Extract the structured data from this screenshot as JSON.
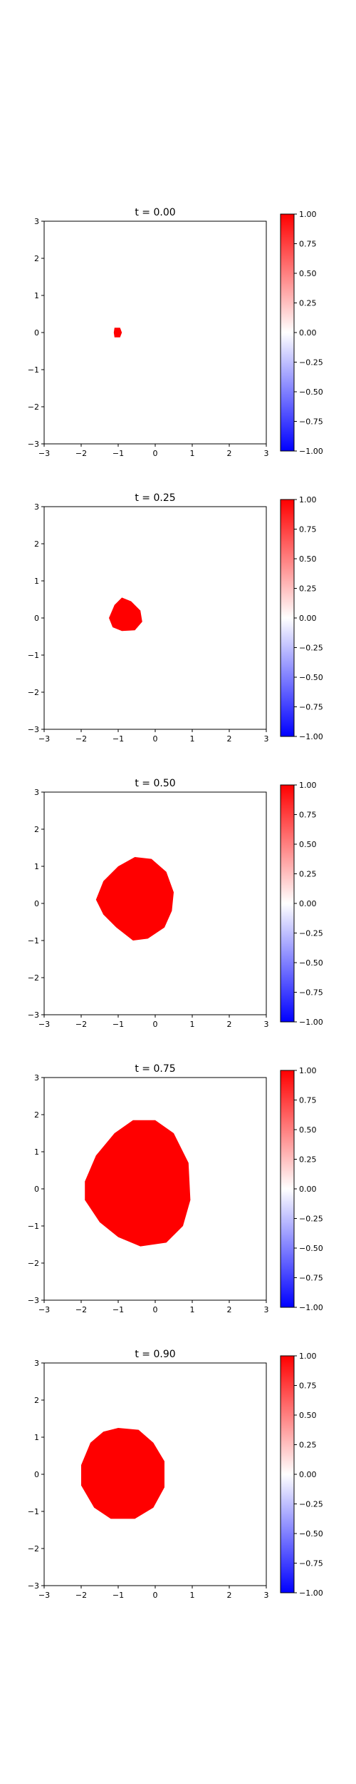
{
  "figure": {
    "background": "#ffffff",
    "mark_color": "#ff0000",
    "axis_color": "#000000"
  },
  "colorbar": {
    "colormap": "bwr",
    "colors": [
      "#0000ff",
      "#ffffff",
      "#ff0000"
    ],
    "range": [
      -1.0,
      1.0
    ],
    "tick_labels": [
      "1.00",
      "0.75",
      "0.50",
      "0.25",
      "0.00",
      "−0.25",
      "−0.50",
      "−0.75",
      "−1.00"
    ]
  },
  "chart_data": [
    {
      "type": "heatmap",
      "title": "t = 0.00",
      "xlim": [
        -3,
        3
      ],
      "ylim": [
        -3,
        3
      ],
      "x_ticks": [
        "−3",
        "−2",
        "−1",
        "0",
        "1",
        "2",
        "3"
      ],
      "y_ticks": [
        "3",
        "2",
        "1",
        "0",
        "−1",
        "−2",
        "−3"
      ],
      "value_inside": 1.0,
      "value_outside": 0.0,
      "region_boundary": [
        [
          -1.1,
          0.13
        ],
        [
          -0.95,
          0.13
        ],
        [
          -0.9,
          0.0
        ],
        [
          -0.95,
          -0.13
        ],
        [
          -1.1,
          -0.13
        ],
        [
          -1.12,
          0.0
        ]
      ]
    },
    {
      "type": "heatmap",
      "title": "t = 0.25",
      "xlim": [
        -3,
        3
      ],
      "ylim": [
        -3,
        3
      ],
      "x_ticks": [
        "−3",
        "−2",
        "−1",
        "0",
        "1",
        "2",
        "3"
      ],
      "y_ticks": [
        "3",
        "2",
        "1",
        "0",
        "−1",
        "−2",
        "−3"
      ],
      "value_inside": 1.0,
      "value_outside": 0.0,
      "region_boundary": [
        [
          -0.9,
          0.55
        ],
        [
          -0.65,
          0.45
        ],
        [
          -0.4,
          0.2
        ],
        [
          -0.35,
          -0.1
        ],
        [
          -0.55,
          -0.33
        ],
        [
          -0.9,
          -0.35
        ],
        [
          -1.15,
          -0.25
        ],
        [
          -1.25,
          0.0
        ],
        [
          -1.1,
          0.35
        ]
      ]
    },
    {
      "type": "heatmap",
      "title": "t = 0.50",
      "xlim": [
        -3,
        3
      ],
      "ylim": [
        -3,
        3
      ],
      "x_ticks": [
        "−3",
        "−2",
        "−1",
        "0",
        "1",
        "2",
        "3"
      ],
      "y_ticks": [
        "3",
        "2",
        "1",
        "0",
        "−1",
        "−2",
        "−3"
      ],
      "value_inside": 1.0,
      "value_outside": 0.0,
      "region_boundary": [
        [
          -0.55,
          1.25
        ],
        [
          -0.1,
          1.2
        ],
        [
          0.3,
          0.85
        ],
        [
          0.5,
          0.3
        ],
        [
          0.45,
          -0.2
        ],
        [
          0.25,
          -0.65
        ],
        [
          -0.2,
          -0.95
        ],
        [
          -0.6,
          -1.0
        ],
        [
          -1.05,
          -0.65
        ],
        [
          -1.4,
          -0.3
        ],
        [
          -1.6,
          0.1
        ],
        [
          -1.4,
          0.6
        ],
        [
          -1.0,
          1.0
        ]
      ]
    },
    {
      "type": "heatmap",
      "title": "t = 0.75",
      "xlim": [
        -3,
        3
      ],
      "ylim": [
        -3,
        3
      ],
      "x_ticks": [
        "−3",
        "−2",
        "−1",
        "0",
        "1",
        "2",
        "3"
      ],
      "y_ticks": [
        "3",
        "2",
        "1",
        "0",
        "−1",
        "−2",
        "−3"
      ],
      "value_inside": 1.0,
      "value_outside": 0.0,
      "region_boundary": [
        [
          -0.6,
          1.85
        ],
        [
          0.0,
          1.85
        ],
        [
          0.5,
          1.5
        ],
        [
          0.9,
          0.7
        ],
        [
          0.95,
          -0.3
        ],
        [
          0.75,
          -1.0
        ],
        [
          0.3,
          -1.45
        ],
        [
          -0.4,
          -1.55
        ],
        [
          -1.0,
          -1.3
        ],
        [
          -1.5,
          -0.9
        ],
        [
          -1.9,
          -0.3
        ],
        [
          -1.9,
          0.2
        ],
        [
          -1.6,
          0.9
        ],
        [
          -1.1,
          1.5
        ]
      ]
    },
    {
      "type": "heatmap",
      "title": "t = 0.90",
      "xlim": [
        -3,
        3
      ],
      "ylim": [
        -3,
        3
      ],
      "x_ticks": [
        "−3",
        "−2",
        "−1",
        "0",
        "1",
        "2",
        "3"
      ],
      "y_ticks": [
        "3",
        "2",
        "1",
        "0",
        "−1",
        "−2",
        "−3"
      ],
      "value_inside": 1.0,
      "value_outside": 0.0,
      "region_boundary": [
        [
          -1.0,
          1.25
        ],
        [
          -0.45,
          1.2
        ],
        [
          -0.05,
          0.85
        ],
        [
          0.25,
          0.35
        ],
        [
          0.25,
          -0.35
        ],
        [
          -0.05,
          -0.9
        ],
        [
          -0.55,
          -1.2
        ],
        [
          -1.2,
          -1.2
        ],
        [
          -1.65,
          -0.9
        ],
        [
          -2.0,
          -0.3
        ],
        [
          -2.0,
          0.25
        ],
        [
          -1.75,
          0.85
        ],
        [
          -1.4,
          1.15
        ]
      ]
    }
  ]
}
